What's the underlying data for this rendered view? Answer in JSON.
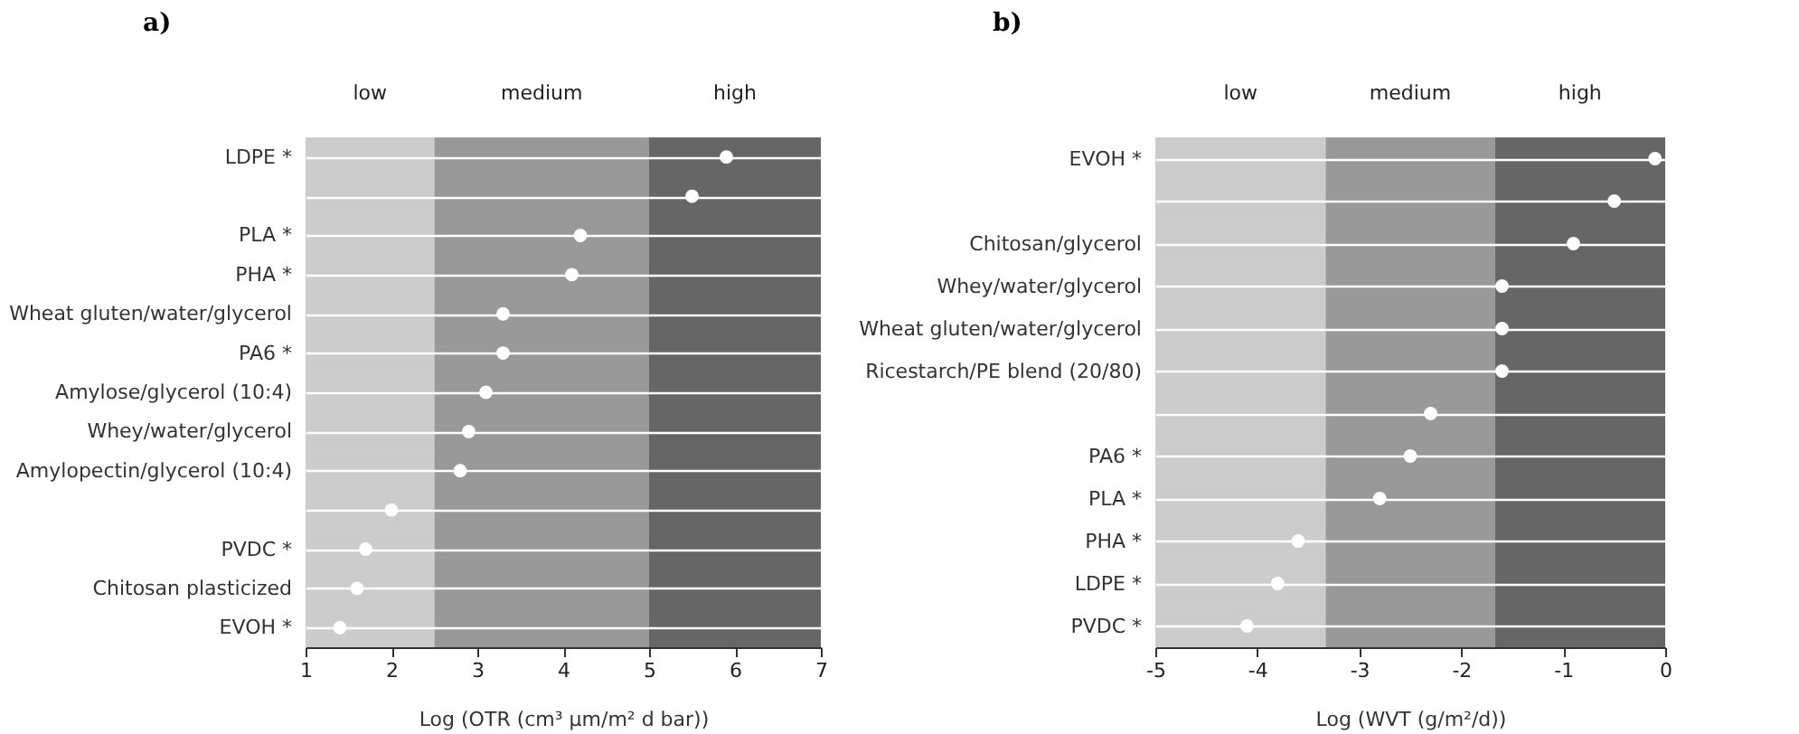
{
  "chart_data": [
    {
      "type": "scatter",
      "title": "a)",
      "orientation": "horizontal",
      "xlabel": "Log (OTR (cm³ µm/m² d bar))",
      "categories": [
        "LDPE *",
        null,
        "PLA *",
        "PHA *",
        "Wheat gluten/water/glycerol",
        "PA6 *",
        "Amylose/glycerol (10:4)",
        "Whey/water/glycerol",
        "Amylopectin/glycerol (10:4)",
        null,
        "PVDC *",
        "Chitosan plasticized",
        "EVOH *"
      ],
      "series": [
        {
          "color": "#ffffff",
          "values": [
            5.9,
            5.5,
            4.2,
            4.1,
            3.3,
            3.3,
            3.1,
            2.9,
            2.8,
            2.0,
            1.7,
            1.6,
            1.4
          ]
        }
      ],
      "xlim": [
        1,
        7
      ],
      "xticks": [
        1,
        2,
        3,
        4,
        5,
        6,
        7
      ],
      "bands": [
        {
          "axis": "x",
          "from": 1,
          "to": 2.5,
          "label": "low",
          "color": "#cccccc"
        },
        {
          "axis": "x",
          "from": 2.5,
          "to": 5,
          "label": "medium",
          "color": "#999999"
        },
        {
          "axis": "x",
          "from": 5,
          "to": 7,
          "label": "high",
          "color": "#666666"
        }
      ],
      "grid": "y",
      "marker": "circle"
    },
    {
      "type": "scatter",
      "title": "b)",
      "orientation": "horizontal",
      "xlabel": "Log (WVT (g/m²/d))",
      "categories": [
        "EVOH *",
        null,
        "Chitosan/glycerol",
        "Whey/water/glycerol",
        "Wheat gluten/water/glycerol",
        "Ricestarch/PE blend (20/80)",
        null,
        "PA6 *",
        "PLA *",
        "PHA *",
        "LDPE *",
        "PVDC *"
      ],
      "series": [
        {
          "color": "#ffffff",
          "values": [
            -0.1,
            -0.5,
            -0.9,
            -1.6,
            -1.6,
            -1.6,
            -2.3,
            -2.5,
            -2.8,
            -3.6,
            -3.8,
            -4.1
          ]
        }
      ],
      "xlim": [
        -5,
        0
      ],
      "xticks": [
        -5,
        -4,
        -3,
        -2,
        -1,
        0
      ],
      "bands": [
        {
          "axis": "x",
          "from": -5,
          "to": -3.33,
          "label": "low",
          "color": "#cccccc"
        },
        {
          "axis": "x",
          "from": -3.33,
          "to": -1.67,
          "label": "medium",
          "color": "#999999"
        },
        {
          "axis": "x",
          "from": -1.67,
          "to": 0,
          "label": "high",
          "color": "#666666"
        }
      ],
      "grid": "y",
      "marker": "circle"
    }
  ]
}
